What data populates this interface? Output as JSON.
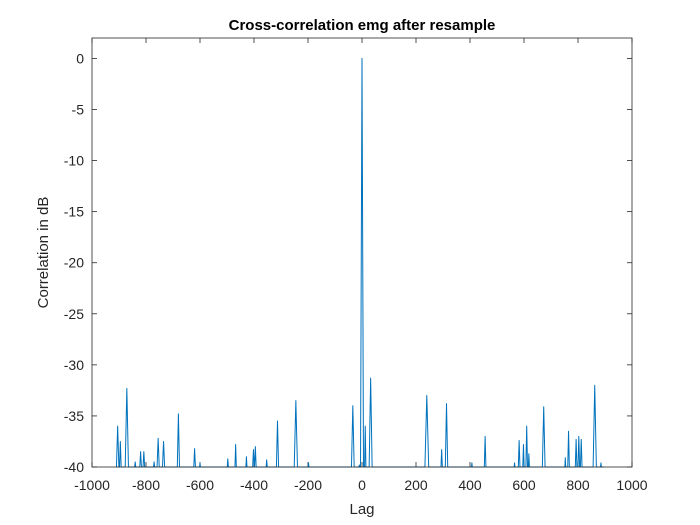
{
  "chart_data": {
    "type": "line",
    "title": "Cross-correlation emg after resample",
    "xlabel": "Lag",
    "ylabel": "Correlation in dB",
    "xlim": [
      -1000,
      1000
    ],
    "ylim": [
      -40,
      2
    ],
    "xticks": [
      -1000,
      -800,
      -600,
      -400,
      -200,
      0,
      200,
      400,
      600,
      800,
      1000
    ],
    "yticks": [
      0,
      -5,
      -10,
      -15,
      -20,
      -25,
      -30,
      -35,
      -40
    ],
    "xtick_labels": [
      "-1000",
      "-800",
      "-600",
      "-400",
      "-200",
      "0",
      "200",
      "400",
      "600",
      "800",
      "1000"
    ],
    "ytick_labels": [
      "0",
      "-5",
      "-10",
      "-15",
      "-20",
      "-25",
      "-30",
      "-35",
      "-40"
    ],
    "grid": false,
    "line_color": "#0072BD",
    "series": [
      {
        "peaks": [
          {
            "x": -905,
            "y": -36.0,
            "w": 9
          },
          {
            "x": -895,
            "y": -37.5,
            "w": 6
          },
          {
            "x": -871,
            "y": -32.3,
            "w": 12
          },
          {
            "x": -840,
            "y": -39.5,
            "w": 4
          },
          {
            "x": -820,
            "y": -38.5,
            "w": 6
          },
          {
            "x": -808,
            "y": -38.5,
            "w": 6
          },
          {
            "x": -770,
            "y": -39.5,
            "w": 4
          },
          {
            "x": -755,
            "y": -37.2,
            "w": 8
          },
          {
            "x": -735,
            "y": -37.5,
            "w": 8
          },
          {
            "x": -680,
            "y": -34.8,
            "w": 8
          },
          {
            "x": -620,
            "y": -38.2,
            "w": 6
          },
          {
            "x": -600,
            "y": -39.6,
            "w": 3
          },
          {
            "x": -497,
            "y": -39.2,
            "w": 4
          },
          {
            "x": -468,
            "y": -37.8,
            "w": 5
          },
          {
            "x": -428,
            "y": -39.0,
            "w": 4
          },
          {
            "x": -402,
            "y": -38.3,
            "w": 6
          },
          {
            "x": -395,
            "y": -38.0,
            "w": 6
          },
          {
            "x": -353,
            "y": -39.3,
            "w": 4
          },
          {
            "x": -313,
            "y": -35.5,
            "w": 8
          },
          {
            "x": -245,
            "y": -33.5,
            "w": 12
          },
          {
            "x": -198,
            "y": -39.6,
            "w": 3
          },
          {
            "x": -34,
            "y": -34.0,
            "w": 10
          },
          {
            "x": -10,
            "y": -39.8,
            "w": 3
          },
          {
            "x": 0,
            "y": 0.0,
            "w": 11
          },
          {
            "x": 12,
            "y": -36.0,
            "w": 5
          },
          {
            "x": 32,
            "y": -31.3,
            "w": 11
          },
          {
            "x": 240,
            "y": -33.0,
            "w": 14
          },
          {
            "x": 295,
            "y": -38.3,
            "w": 5
          },
          {
            "x": 313,
            "y": -33.8,
            "w": 9
          },
          {
            "x": 407,
            "y": -39.6,
            "w": 3
          },
          {
            "x": 456,
            "y": -37.0,
            "w": 6
          },
          {
            "x": 565,
            "y": -39.6,
            "w": 3
          },
          {
            "x": 582,
            "y": -37.4,
            "w": 6
          },
          {
            "x": 598,
            "y": -37.8,
            "w": 5
          },
          {
            "x": 610,
            "y": -36.0,
            "w": 6
          },
          {
            "x": 618,
            "y": -38.7,
            "w": 4
          },
          {
            "x": 673,
            "y": -34.1,
            "w": 10
          },
          {
            "x": 753,
            "y": -39.1,
            "w": 3
          },
          {
            "x": 765,
            "y": -36.5,
            "w": 6
          },
          {
            "x": 793,
            "y": -37.3,
            "w": 6
          },
          {
            "x": 803,
            "y": -37.0,
            "w": 6
          },
          {
            "x": 812,
            "y": -37.3,
            "w": 6
          },
          {
            "x": 862,
            "y": -32.0,
            "w": 12
          },
          {
            "x": 885,
            "y": -39.6,
            "w": 3
          }
        ]
      }
    ]
  }
}
